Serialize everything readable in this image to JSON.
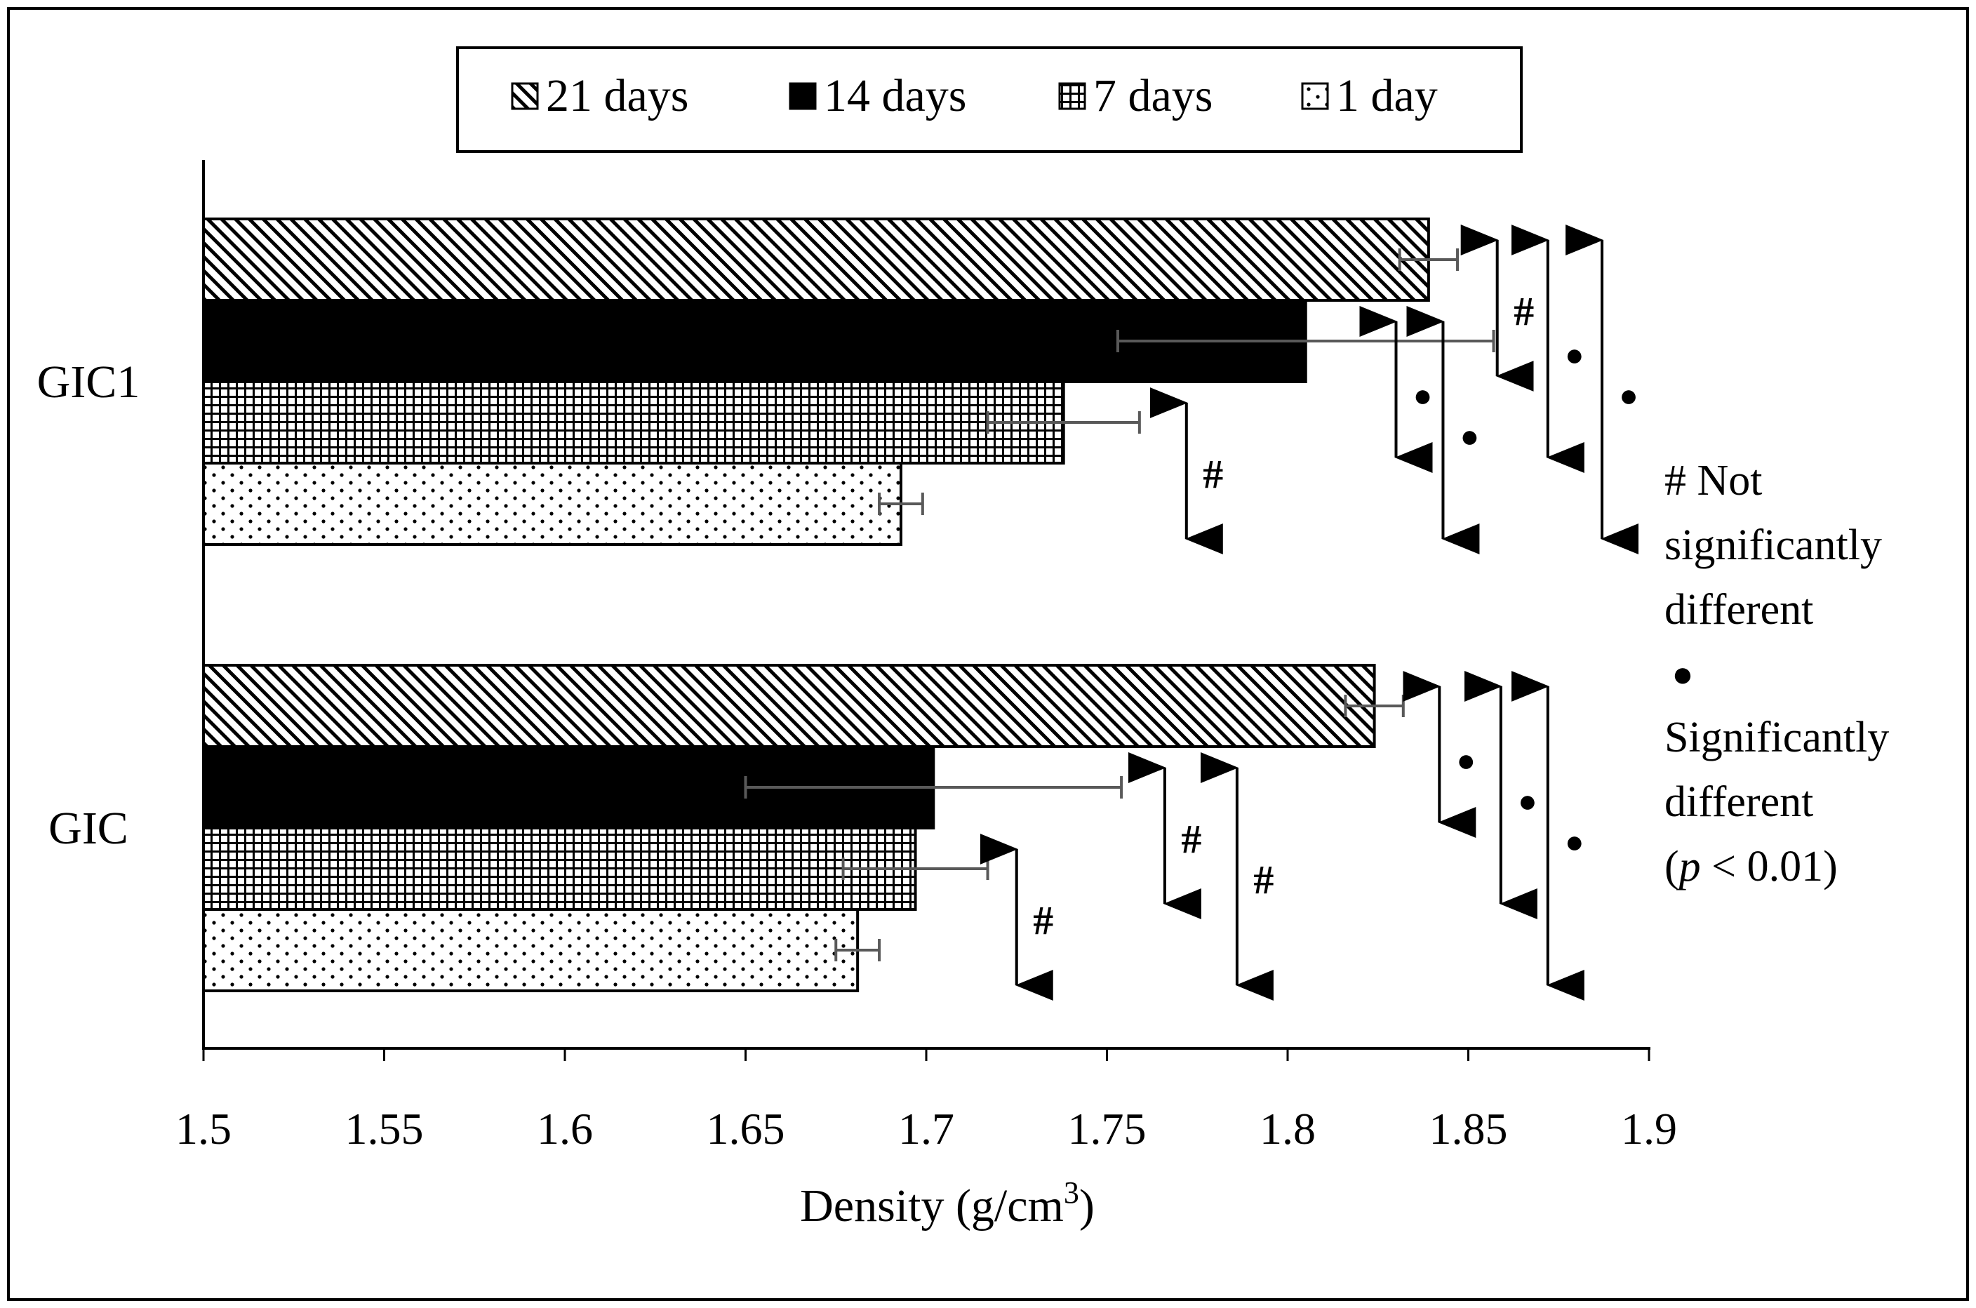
{
  "chart_data": {
    "type": "bar",
    "orientation": "horizontal",
    "categories": [
      "GIC1",
      "GIC"
    ],
    "series": [
      {
        "name": "21 days",
        "pattern": "diagonal-hatch",
        "values": [
          1.839,
          1.824
        ],
        "errors": [
          0.008,
          0.008
        ]
      },
      {
        "name": "14 days",
        "pattern": "solid",
        "values": [
          1.805,
          1.702
        ],
        "errors": [
          0.052,
          0.052
        ]
      },
      {
        "name": "7 days",
        "pattern": "grid",
        "values": [
          1.738,
          1.697
        ],
        "errors": [
          0.021,
          0.02
        ]
      },
      {
        "name": "1 day",
        "pattern": "dots",
        "values": [
          1.693,
          1.681
        ],
        "errors": [
          0.006,
          0.006
        ]
      }
    ],
    "xlim": [
      1.5,
      1.9
    ],
    "xticks": [
      "1.5",
      "1.55",
      "1.6",
      "1.65",
      "1.7",
      "1.75",
      "1.8",
      "1.85",
      "1.9"
    ],
    "xlabel": "Density (g/cm",
    "xlabel_superscript": "3",
    "xlabel_suffix": ")",
    "legend_position": "top-center",
    "grid": false,
    "comparisons": [
      {
        "category": "GIC1",
        "from": "7 days",
        "to": "1 day",
        "x": 1.772,
        "mark": "#"
      },
      {
        "category": "GIC1",
        "from": "14 days",
        "to": "7 days",
        "x": 1.83,
        "mark": "●"
      },
      {
        "category": "GIC1",
        "from": "14 days",
        "to": "1 day",
        "x": 1.843,
        "mark": "●"
      },
      {
        "category": "GIC1",
        "from": "21 days",
        "to": "14 days",
        "x": 1.858,
        "mark": "#"
      },
      {
        "category": "GIC1",
        "from": "21 days",
        "to": "7 days",
        "x": 1.872,
        "mark": "●"
      },
      {
        "category": "GIC1",
        "from": "21 days",
        "to": "1 day",
        "x": 1.887,
        "mark": "●"
      },
      {
        "category": "GIC",
        "from": "7 days",
        "to": "1 day",
        "x": 1.725,
        "mark": "#"
      },
      {
        "category": "GIC",
        "from": "14 days",
        "to": "7 days",
        "x": 1.766,
        "mark": "#"
      },
      {
        "category": "GIC",
        "from": "14 days",
        "to": "1 day",
        "x": 1.786,
        "mark": "#"
      },
      {
        "category": "GIC",
        "from": "21 days",
        "to": "14 days",
        "x": 1.842,
        "mark": "●"
      },
      {
        "category": "GIC",
        "from": "21 days",
        "to": "7 days",
        "x": 1.859,
        "mark": "●"
      },
      {
        "category": "GIC",
        "from": "21 days",
        "to": "1 day",
        "x": 1.872,
        "mark": "●"
      }
    ],
    "annotations": {
      "hash_line1": "# Not",
      "hash_line2": "significantly",
      "hash_line3": "different",
      "dot_symbol": "●",
      "dot_line1": "Significantly",
      "dot_line2": "different",
      "dot_line3_p": "p",
      "dot_line3_rest": " < 0.01)",
      "dot_line3_open": "("
    }
  }
}
